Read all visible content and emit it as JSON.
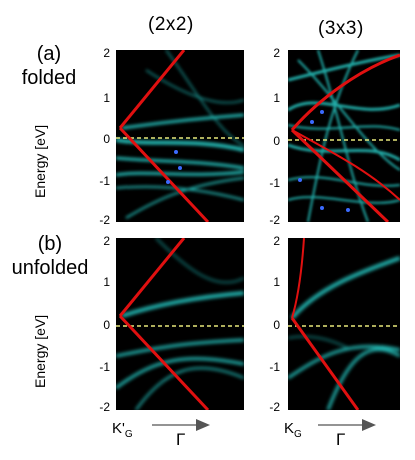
{
  "columns": [
    {
      "title": "(2x2)"
    },
    {
      "title": "(3x3)"
    }
  ],
  "rows": [
    {
      "letter": "(a)",
      "label": "folded"
    },
    {
      "letter": "(b)",
      "label": "unfolded"
    }
  ],
  "y_axis": {
    "label": "Energy [eV]",
    "ticks": [
      "2",
      "1",
      "0",
      "-1",
      "-2"
    ],
    "range": [
      -2,
      2
    ],
    "fermi_level": 0
  },
  "x_axis": {
    "left_kpoint": {
      "base": "K'",
      "sub": "G"
    },
    "right_kpoint": {
      "base": "K",
      "sub": "G"
    },
    "direction_label": "Γ"
  },
  "colors": {
    "background": "#000000",
    "dirac_cone": "#e01010",
    "bands": "#29d6d0",
    "fermi_line": "#e8e87a",
    "markers": "#3b6bff"
  }
}
